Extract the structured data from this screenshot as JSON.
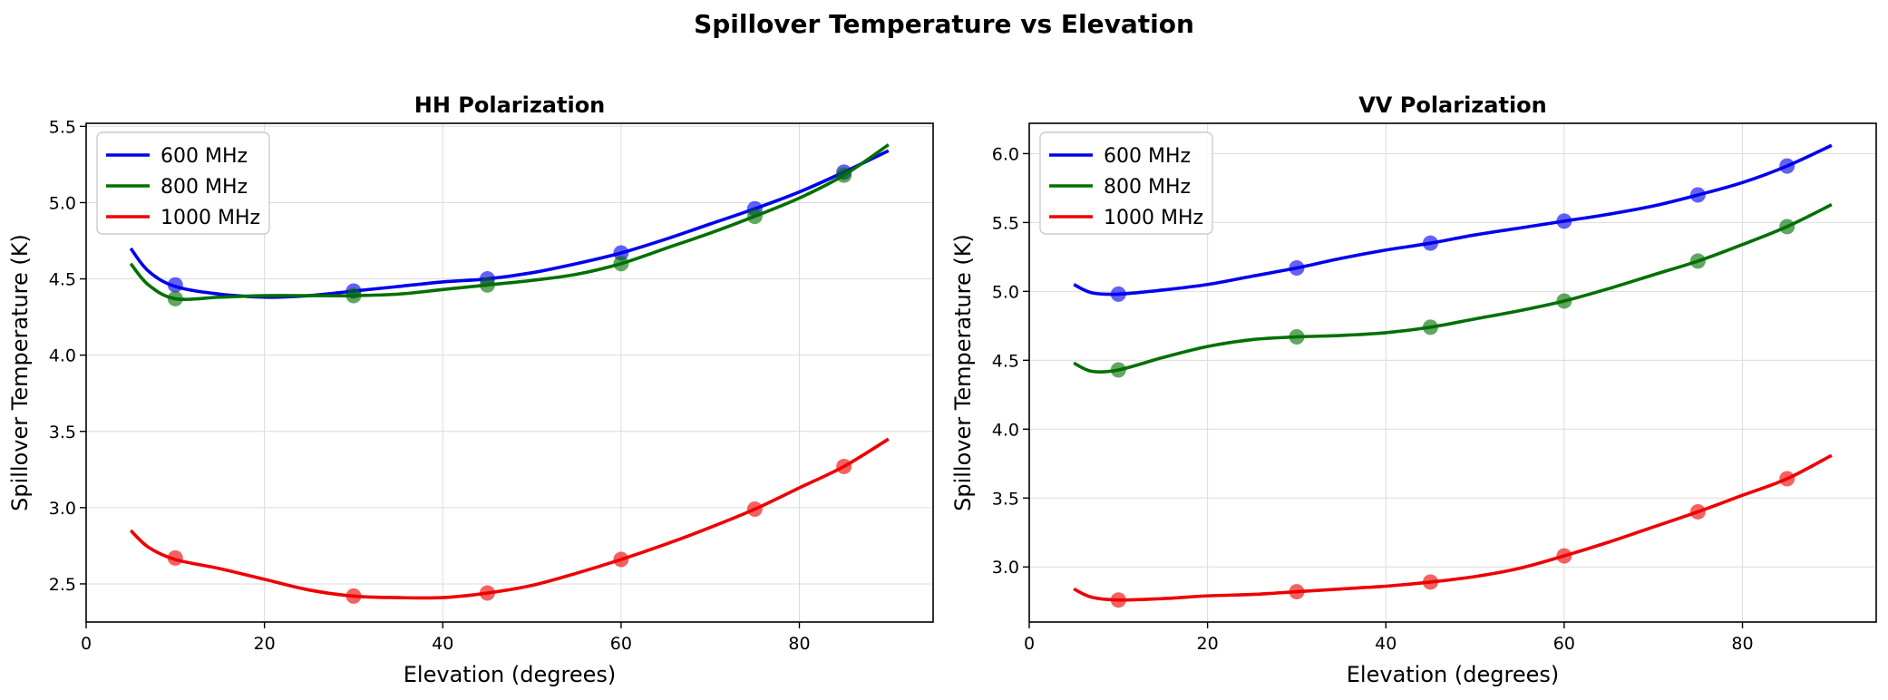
{
  "figure": {
    "title": "Spillover Temperature vs Elevation"
  },
  "chart_data": [
    {
      "type": "line",
      "title": "HH Polarization",
      "xlabel": "Elevation (degrees)",
      "ylabel": "Spillover Temperature (K)",
      "xlim": [
        0,
        95
      ],
      "ylim": [
        2.25,
        5.52
      ],
      "xticks": [
        0,
        20,
        40,
        60,
        80
      ],
      "yticks": [
        2.5,
        3.0,
        3.5,
        4.0,
        4.5,
        5.0,
        5.5
      ],
      "grid": true,
      "legend_position": "top-left",
      "series": [
        {
          "name": "600 MHz",
          "color": "#0000ee",
          "points_x": [
            10,
            30,
            45,
            60,
            75,
            85
          ],
          "points_y": [
            4.46,
            4.42,
            4.5,
            4.67,
            4.96,
            5.2
          ],
          "curve_x": [
            5,
            7,
            10,
            15,
            20,
            25,
            30,
            35,
            40,
            45,
            50,
            55,
            60,
            65,
            70,
            75,
            80,
            85,
            90
          ],
          "curve_y": [
            4.7,
            4.55,
            4.45,
            4.4,
            4.38,
            4.39,
            4.42,
            4.45,
            4.48,
            4.5,
            4.54,
            4.6,
            4.67,
            4.76,
            4.86,
            4.96,
            5.07,
            5.2,
            5.34
          ]
        },
        {
          "name": "800 MHz",
          "color": "#007000",
          "points_x": [
            10,
            30,
            45,
            60,
            75,
            85
          ],
          "points_y": [
            4.37,
            4.39,
            4.46,
            4.6,
            4.91,
            5.18
          ],
          "curve_x": [
            5,
            7,
            10,
            15,
            20,
            25,
            30,
            35,
            40,
            45,
            50,
            55,
            60,
            65,
            70,
            75,
            80,
            85,
            90
          ],
          "curve_y": [
            4.6,
            4.46,
            4.37,
            4.38,
            4.39,
            4.39,
            4.39,
            4.4,
            4.43,
            4.46,
            4.49,
            4.53,
            4.6,
            4.7,
            4.8,
            4.91,
            5.03,
            5.18,
            5.38
          ]
        },
        {
          "name": "1000 MHz",
          "color": "#ee0000",
          "points_x": [
            10,
            30,
            45,
            60,
            75,
            85
          ],
          "points_y": [
            2.67,
            2.42,
            2.44,
            2.66,
            2.99,
            3.27
          ],
          "curve_x": [
            5,
            7,
            10,
            15,
            20,
            25,
            30,
            35,
            40,
            45,
            50,
            55,
            60,
            65,
            70,
            75,
            80,
            85,
            90
          ],
          "curve_y": [
            2.85,
            2.74,
            2.66,
            2.6,
            2.53,
            2.46,
            2.42,
            2.41,
            2.41,
            2.44,
            2.49,
            2.57,
            2.66,
            2.76,
            2.87,
            2.99,
            3.13,
            3.27,
            3.45
          ]
        }
      ]
    },
    {
      "type": "line",
      "title": "VV Polarization",
      "xlabel": "Elevation (degrees)",
      "ylabel": "Spillover Temperature (K)",
      "xlim": [
        0,
        95
      ],
      "ylim": [
        2.6,
        6.22
      ],
      "xticks": [
        0,
        20,
        40,
        60,
        80
      ],
      "yticks": [
        3.0,
        3.5,
        4.0,
        4.5,
        5.0,
        5.5,
        6.0
      ],
      "grid": true,
      "legend_position": "top-left",
      "series": [
        {
          "name": "600 MHz",
          "color": "#0000ee",
          "points_x": [
            10,
            30,
            45,
            60,
            75,
            85
          ],
          "points_y": [
            4.98,
            5.17,
            5.35,
            5.51,
            5.7,
            5.91
          ],
          "curve_x": [
            5,
            7,
            10,
            15,
            20,
            25,
            30,
            35,
            40,
            45,
            50,
            55,
            60,
            65,
            70,
            75,
            80,
            85,
            90
          ],
          "curve_y": [
            5.05,
            4.99,
            4.98,
            5.01,
            5.05,
            5.11,
            5.17,
            5.24,
            5.3,
            5.35,
            5.41,
            5.46,
            5.51,
            5.56,
            5.62,
            5.7,
            5.79,
            5.91,
            6.06
          ]
        },
        {
          "name": "800 MHz",
          "color": "#007000",
          "points_x": [
            10,
            30,
            45,
            60,
            75,
            85
          ],
          "points_y": [
            4.43,
            4.67,
            4.74,
            4.93,
            5.22,
            5.47
          ],
          "curve_x": [
            5,
            7,
            10,
            15,
            20,
            25,
            30,
            35,
            40,
            45,
            50,
            55,
            60,
            65,
            70,
            75,
            80,
            85,
            90
          ],
          "curve_y": [
            4.48,
            4.42,
            4.43,
            4.52,
            4.6,
            4.65,
            4.67,
            4.68,
            4.7,
            4.74,
            4.8,
            4.86,
            4.93,
            5.02,
            5.12,
            5.22,
            5.34,
            5.47,
            5.63
          ]
        },
        {
          "name": "1000 MHz",
          "color": "#ee0000",
          "points_x": [
            10,
            30,
            45,
            60,
            75,
            85
          ],
          "points_y": [
            2.76,
            2.82,
            2.89,
            3.08,
            3.4,
            3.64
          ],
          "curve_x": [
            5,
            7,
            10,
            15,
            20,
            25,
            30,
            35,
            40,
            45,
            50,
            55,
            60,
            65,
            70,
            75,
            80,
            85,
            90
          ],
          "curve_y": [
            2.84,
            2.78,
            2.76,
            2.77,
            2.79,
            2.8,
            2.82,
            2.84,
            2.86,
            2.89,
            2.93,
            2.99,
            3.08,
            3.18,
            3.29,
            3.4,
            3.52,
            3.64,
            3.81
          ]
        }
      ]
    }
  ]
}
